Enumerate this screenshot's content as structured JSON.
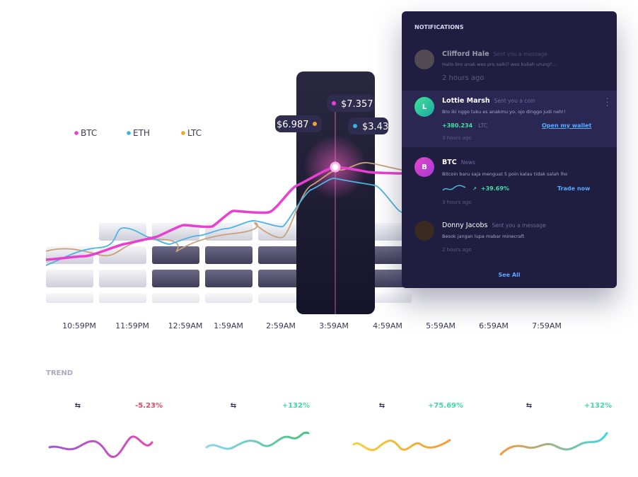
{
  "legend": [
    "BTC",
    "ETH",
    "LTC"
  ],
  "tooltips": [
    "$6.987",
    "$7.357",
    "$3.43"
  ],
  "x_labels": [
    "10:59PM",
    "11:59PM",
    "12:59AM",
    "1:59AM",
    "2:59AM",
    "3:59AM",
    "4:59AM",
    "5:59AM",
    "6:59AM",
    "7:59AM"
  ],
  "notifications": {
    "title": "NOTIFICATIONS",
    "items": [
      {
        "name": "Clifford Hale",
        "action": "Sent you a message",
        "message": "Hallo bro anak wes pro saiki? wes kuliah urung?...",
        "time": "2 hours ago"
      },
      {
        "initial": "L",
        "name": "Lottie Marsh",
        "action": "Sent you a coin",
        "message": "Bro iki nggo tuku es anakmu yo, ojo dinggo judi neh!!",
        "amount": "+380.234",
        "unit": "LTC",
        "link": "Open my wallet",
        "time": "3 hours ago"
      },
      {
        "initial": "B",
        "name": "BTC",
        "action": "News",
        "message": "Bitcoin baru saja menguat 5 poin kalau tidak salah lho",
        "amount": "+39.69%",
        "link": "Trade now",
        "time": "3 hours ago"
      },
      {
        "name": "Donny Jacobs",
        "action": "Sent you a message",
        "message": "Besok jangan lupa mabar minecraft",
        "time": "2 hours ago"
      }
    ],
    "see_all": "See All"
  },
  "trend": {
    "title": "TREND",
    "changes": [
      "-5.23%",
      "+132%",
      "+75.69%",
      "+132%"
    ]
  }
}
